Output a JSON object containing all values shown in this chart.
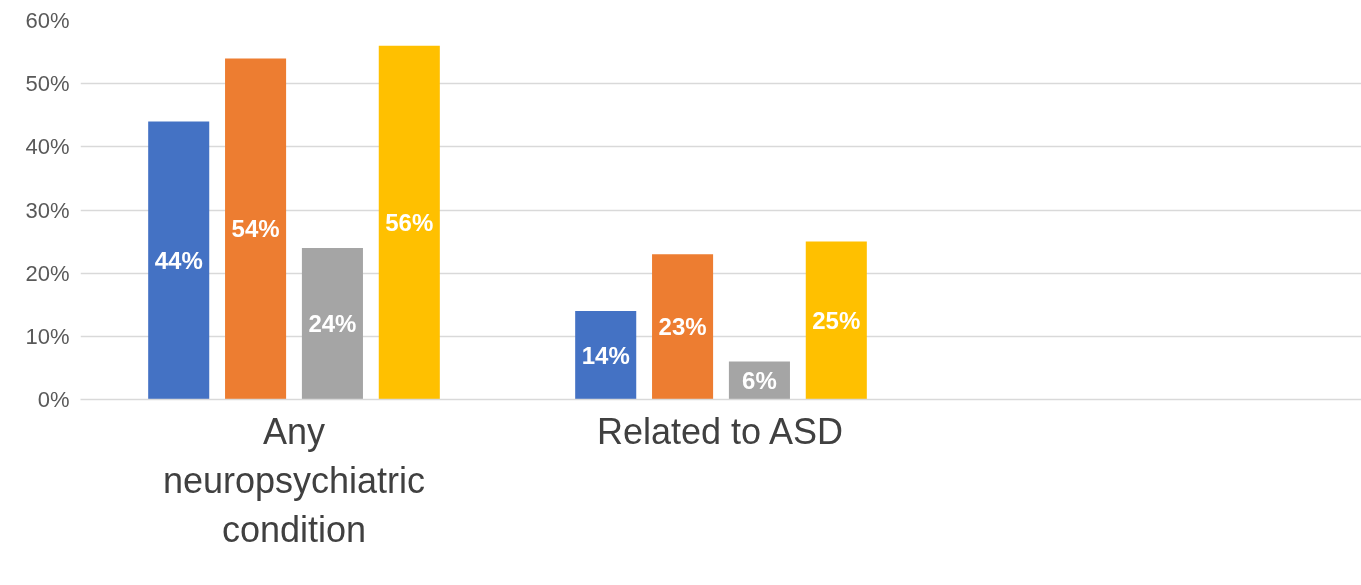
{
  "chart_data": {
    "type": "bar",
    "categories": [
      "Any neuropsychiatric condition",
      "Related to ASD",
      null
    ],
    "series": [
      {
        "color": "#4472c4",
        "values": [
          44,
          14,
          null
        ],
        "value_labels": [
          "44%",
          "14%",
          null
        ]
      },
      {
        "color": "#ed7d31",
        "values": [
          54,
          23,
          null
        ],
        "value_labels": [
          "54%",
          "23%",
          null
        ]
      },
      {
        "color": "#a5a5a5",
        "values": [
          24,
          6,
          null
        ],
        "value_labels": [
          "24%",
          "6%",
          null
        ]
      },
      {
        "color": "#ffc000",
        "values": [
          56,
          25,
          null
        ],
        "value_labels": [
          "56%",
          "25%",
          null
        ]
      }
    ],
    "ylim": [
      0,
      60
    ],
    "yticks": [
      {
        "value": 0,
        "label": "0%"
      },
      {
        "value": 10,
        "label": "10%"
      },
      {
        "value": 20,
        "label": "20%"
      },
      {
        "value": 30,
        "label": "30%"
      },
      {
        "value": 40,
        "label": "40%"
      },
      {
        "value": 50,
        "label": "50%"
      },
      {
        "value": 60,
        "label": "60%"
      }
    ],
    "grid": "y"
  }
}
